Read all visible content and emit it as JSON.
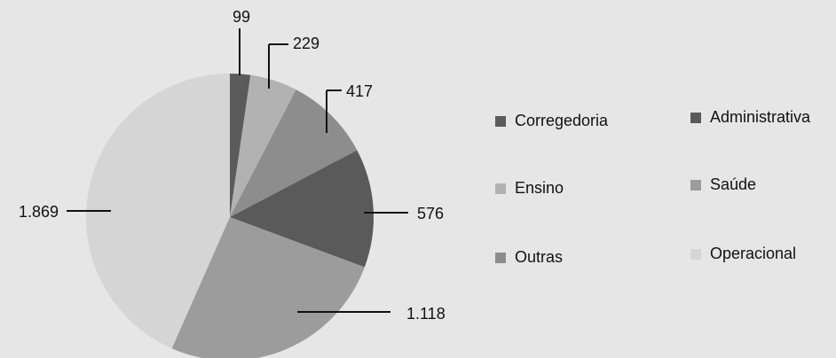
{
  "chart_data": {
    "type": "pie",
    "categories": [
      "Corregedoria",
      "Ensino",
      "Outras",
      "Administrativa",
      "Saúde",
      "Operacional"
    ],
    "values": [
      99,
      229,
      417,
      576,
      1118,
      1869
    ],
    "value_labels": [
      "99",
      "229",
      "417",
      "576",
      "1.118",
      "1.869"
    ],
    "colors": [
      "#5b5b5b",
      "#b2b2b2",
      "#8d8d8d",
      "#5a5a5a",
      "#9c9c9c",
      "#d5d5d5"
    ],
    "legend": "right"
  }
}
